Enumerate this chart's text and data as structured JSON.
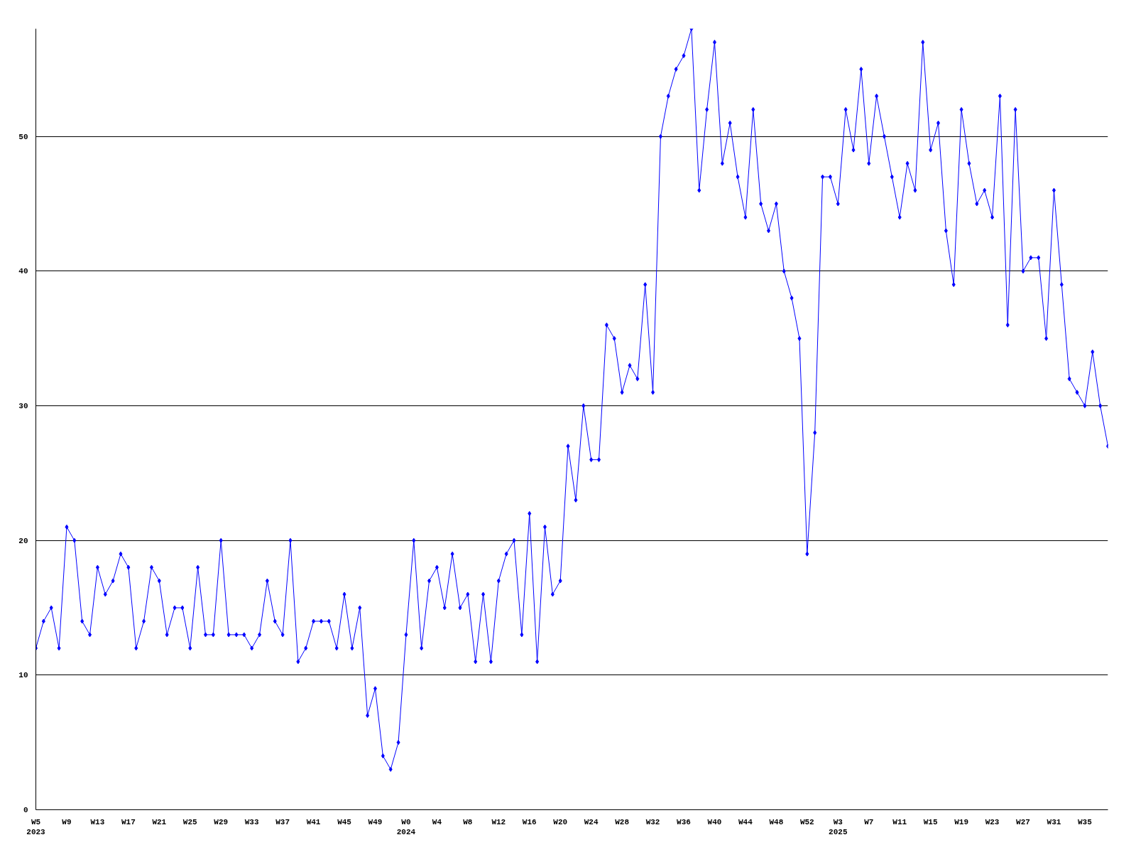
{
  "chart_data": {
    "type": "line",
    "categories": [
      "W5\n2023",
      null,
      null,
      null,
      "W9",
      null,
      null,
      null,
      "W13",
      null,
      null,
      null,
      "W17",
      null,
      null,
      null,
      "W21",
      null,
      null,
      null,
      "W25",
      null,
      null,
      null,
      "W29",
      null,
      null,
      null,
      "W33",
      null,
      null,
      null,
      "W37",
      null,
      null,
      null,
      "W41",
      null,
      null,
      null,
      "W45",
      null,
      null,
      null,
      "W49",
      null,
      null,
      null,
      "W0\n2024",
      null,
      null,
      null,
      "W4",
      null,
      null,
      null,
      "W8",
      null,
      null,
      null,
      "W12",
      null,
      null,
      null,
      "W16",
      null,
      null,
      null,
      "W20",
      null,
      null,
      null,
      "W24",
      null,
      null,
      null,
      "W28",
      null,
      null,
      null,
      "W32",
      null,
      null,
      null,
      "W36",
      null,
      null,
      null,
      "W40",
      null,
      null,
      null,
      "W44",
      null,
      null,
      null,
      "W48",
      null,
      null,
      null,
      "W52",
      null,
      null,
      null,
      "W3\n2025",
      null,
      null,
      null,
      "W7",
      null,
      null,
      null,
      "W11",
      null,
      null,
      null,
      "W15",
      null,
      null,
      null,
      "W19",
      null,
      null,
      null,
      "W23",
      null,
      null,
      null,
      "W27",
      null,
      null,
      null,
      "W31",
      null,
      null,
      null,
      "W35",
      null,
      null,
      null
    ],
    "series": [
      {
        "color": "#0000ff",
        "values": [
          12,
          14,
          15,
          12,
          21,
          20,
          14,
          13,
          18,
          16,
          17,
          19,
          18,
          12,
          14,
          18,
          17,
          13,
          15,
          15,
          12,
          18,
          13,
          13,
          20,
          13,
          13,
          13,
          12,
          13,
          17,
          14,
          13,
          20,
          11,
          12,
          14,
          14,
          14,
          12,
          16,
          12,
          15,
          7,
          9,
          4,
          3,
          5,
          13,
          20,
          12,
          17,
          18,
          15,
          19,
          15,
          16,
          11,
          16,
          11,
          17,
          19,
          20,
          13,
          22,
          11,
          21,
          16,
          17,
          27,
          23,
          30,
          26,
          26,
          36,
          35,
          31,
          33,
          32,
          39,
          31,
          50,
          53,
          55,
          56,
          58,
          46,
          52,
          57,
          48,
          51,
          47,
          44,
          52,
          45,
          43,
          45,
          40,
          38,
          35,
          19,
          28,
          47,
          47,
          45,
          52,
          49,
          55,
          48,
          53,
          50,
          47,
          44,
          48,
          46,
          57,
          49,
          51,
          43,
          39,
          52,
          48,
          45,
          46,
          44,
          53,
          36,
          52,
          40,
          41,
          41,
          35,
          46,
          39,
          32,
          31,
          30,
          34,
          30,
          27
        ]
      }
    ],
    "ylim": [
      0,
      58
    ],
    "yticks": [
      0,
      10,
      20,
      30,
      40,
      50
    ],
    "grid": "y",
    "marker": "diamond",
    "line_style": "solid"
  }
}
